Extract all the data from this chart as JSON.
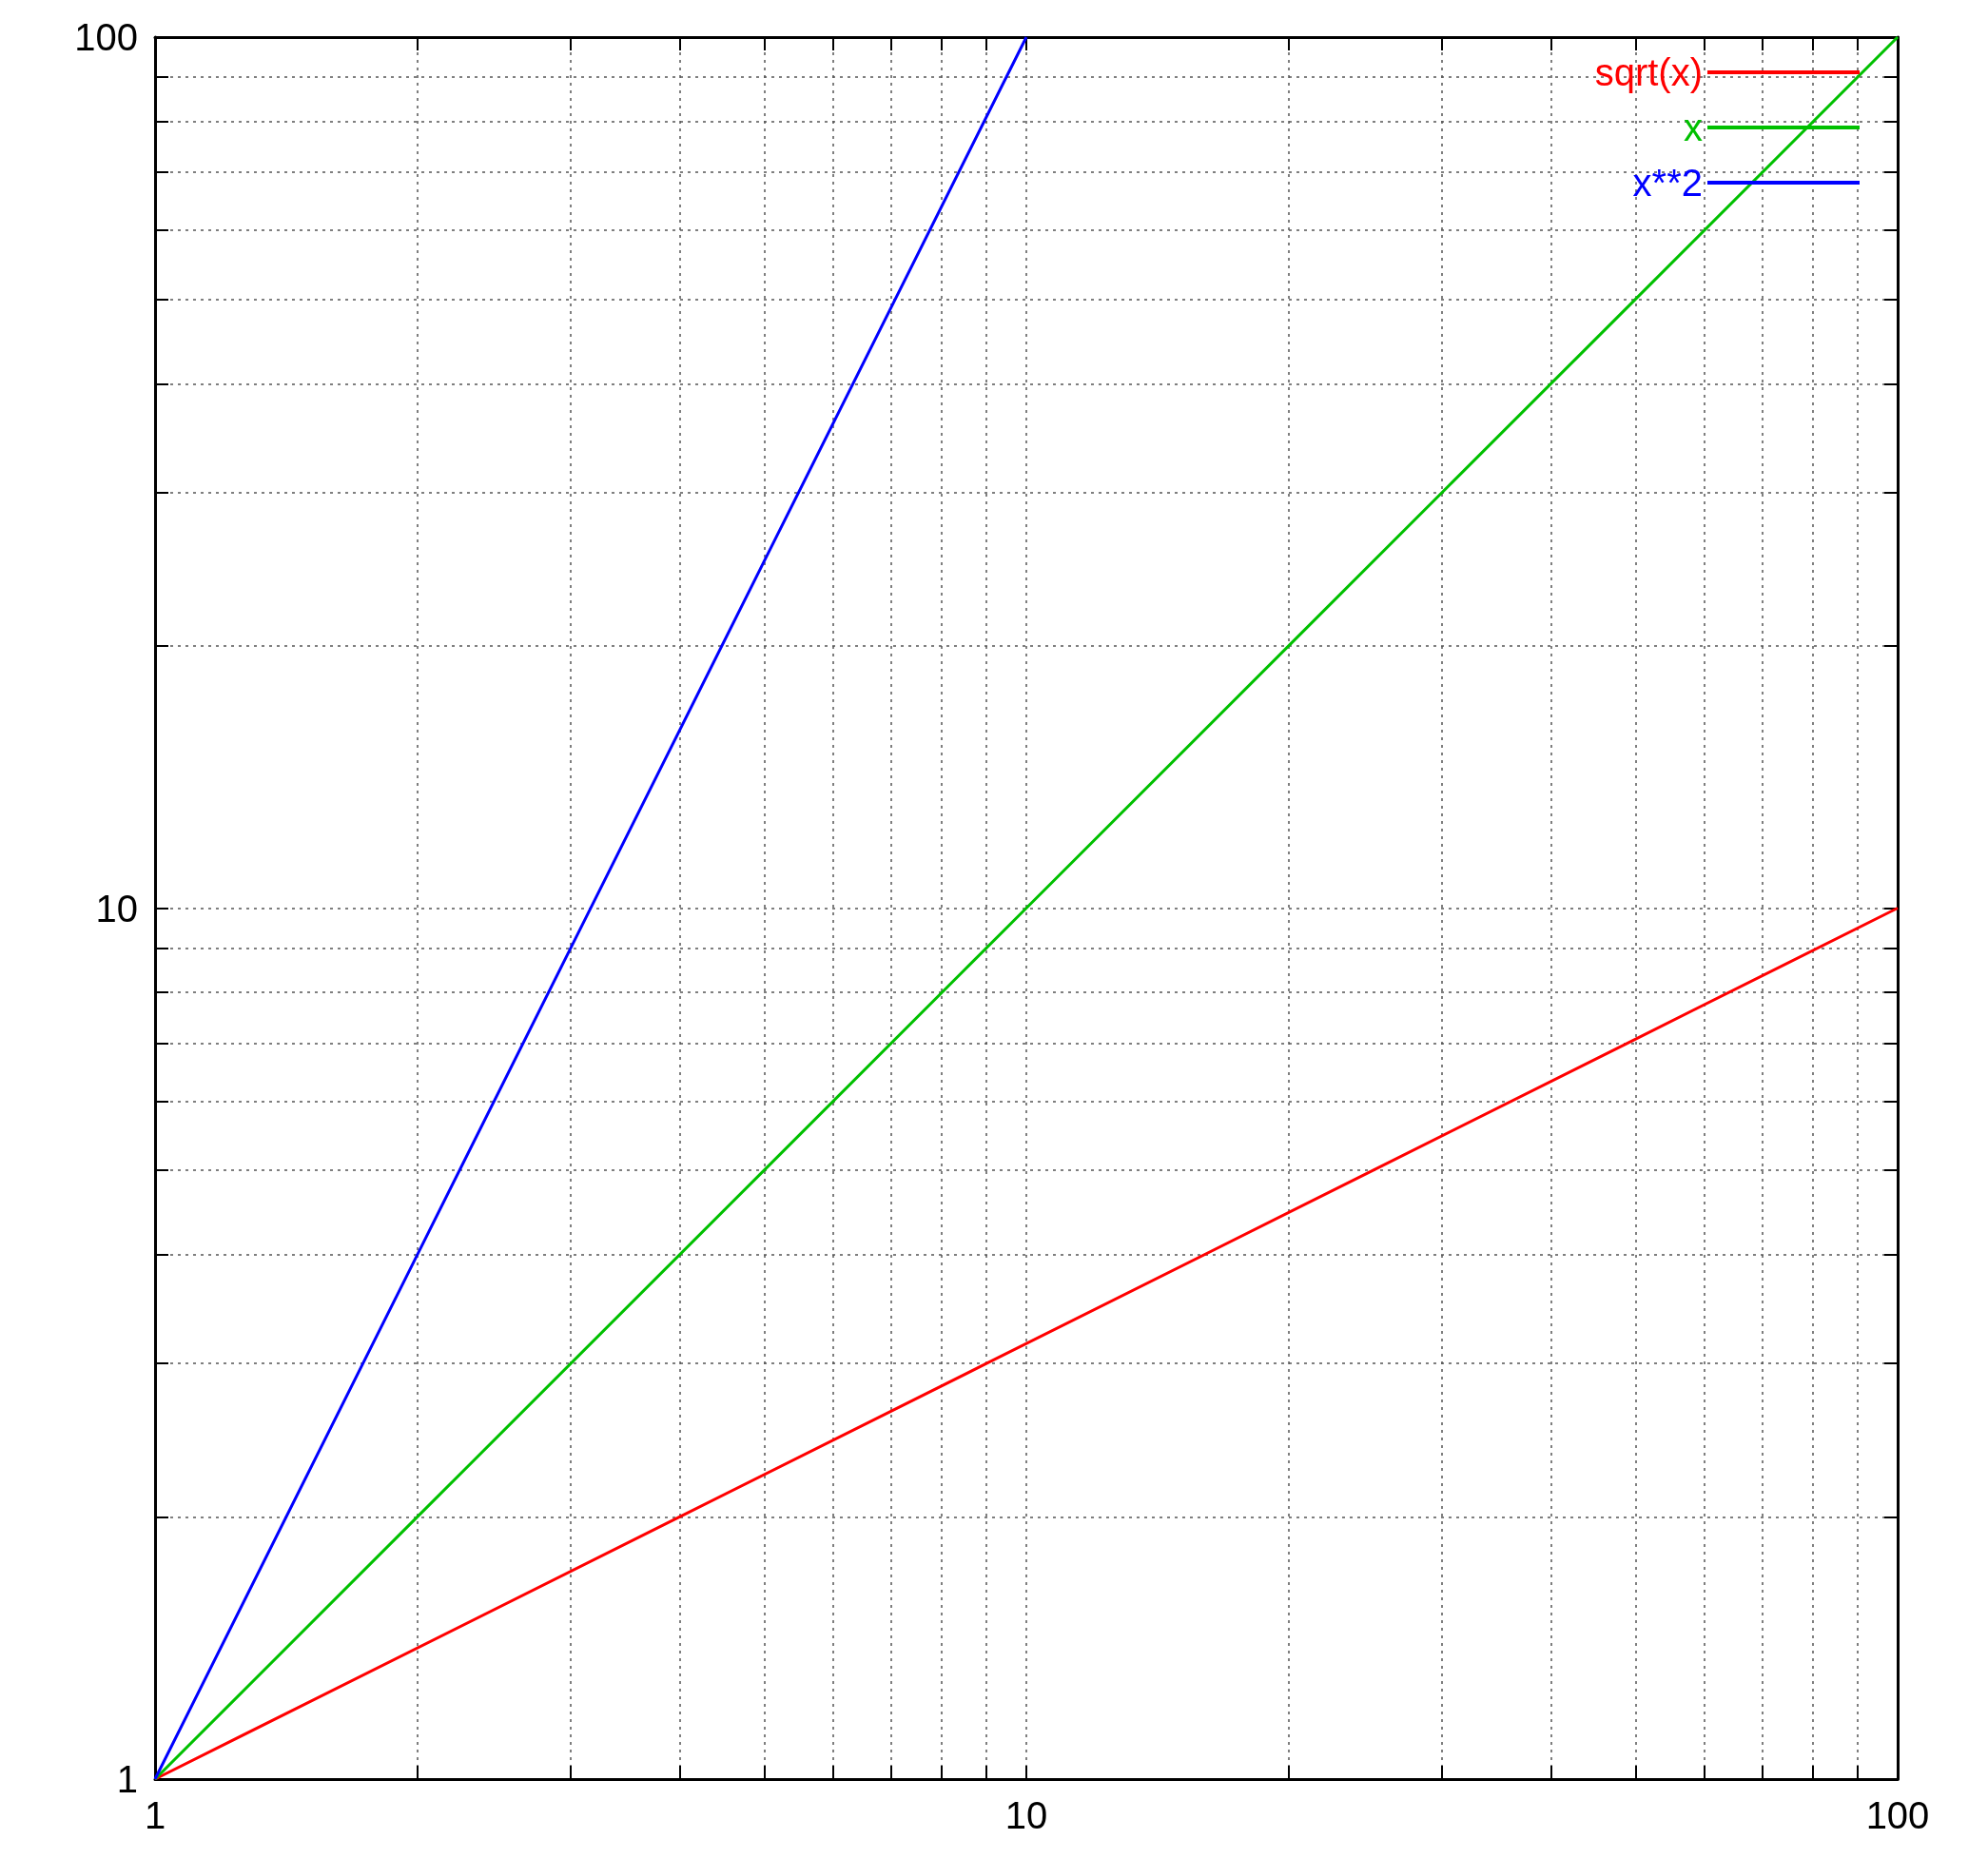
{
  "chart_data": {
    "type": "line",
    "log": "xy",
    "grid": true,
    "legend": "top right",
    "marker": "none",
    "line_style": "solid",
    "xlim": [
      1,
      100
    ],
    "ylim": [
      1,
      100
    ],
    "xticks": [
      1,
      {
        "value": 2,
        "label": null
      },
      {
        "value": 3,
        "label": null
      },
      {
        "value": 4,
        "label": null
      },
      {
        "value": 5,
        "label": null
      },
      {
        "value": 6,
        "label": null
      },
      {
        "value": 7,
        "label": null
      },
      {
        "value": 8,
        "label": null
      },
      {
        "value": 9,
        "label": null
      },
      10,
      {
        "value": 20,
        "label": null
      },
      {
        "value": 30,
        "label": null
      },
      {
        "value": 40,
        "label": null
      },
      {
        "value": 50,
        "label": null
      },
      {
        "value": 60,
        "label": null
      },
      {
        "value": 70,
        "label": null
      },
      {
        "value": 80,
        "label": null
      },
      {
        "value": 90,
        "label": null
      },
      100
    ],
    "yticks": [
      1,
      {
        "value": 2,
        "label": null
      },
      {
        "value": 3,
        "label": null
      },
      {
        "value": 4,
        "label": null
      },
      {
        "value": 5,
        "label": null
      },
      {
        "value": 6,
        "label": null
      },
      {
        "value": 7,
        "label": null
      },
      {
        "value": 8,
        "label": null
      },
      {
        "value": 9,
        "label": null
      },
      10,
      {
        "value": 20,
        "label": null
      },
      {
        "value": 30,
        "label": null
      },
      {
        "value": 40,
        "label": null
      },
      {
        "value": 50,
        "label": null
      },
      {
        "value": 60,
        "label": null
      },
      {
        "value": 70,
        "label": null
      },
      {
        "value": 80,
        "label": null
      },
      {
        "value": 90,
        "label": null
      },
      100
    ],
    "series": [
      {
        "name": "sqrt(x)",
        "color": "#ff0000",
        "x": [
          1,
          4,
          9,
          25,
          49,
          100
        ],
        "values": [
          1,
          2,
          3,
          5,
          7,
          10
        ]
      },
      {
        "name": "x",
        "color": "#00c000",
        "x": [
          1,
          2,
          5,
          10,
          20,
          50,
          100
        ],
        "values": [
          1,
          2,
          5,
          10,
          20,
          50,
          100
        ]
      },
      {
        "name": "x**2",
        "color": "#0000ff",
        "x": [
          1,
          2,
          3,
          5,
          7,
          10
        ],
        "values": [
          1,
          4,
          9,
          25,
          49,
          100
        ]
      }
    ]
  }
}
